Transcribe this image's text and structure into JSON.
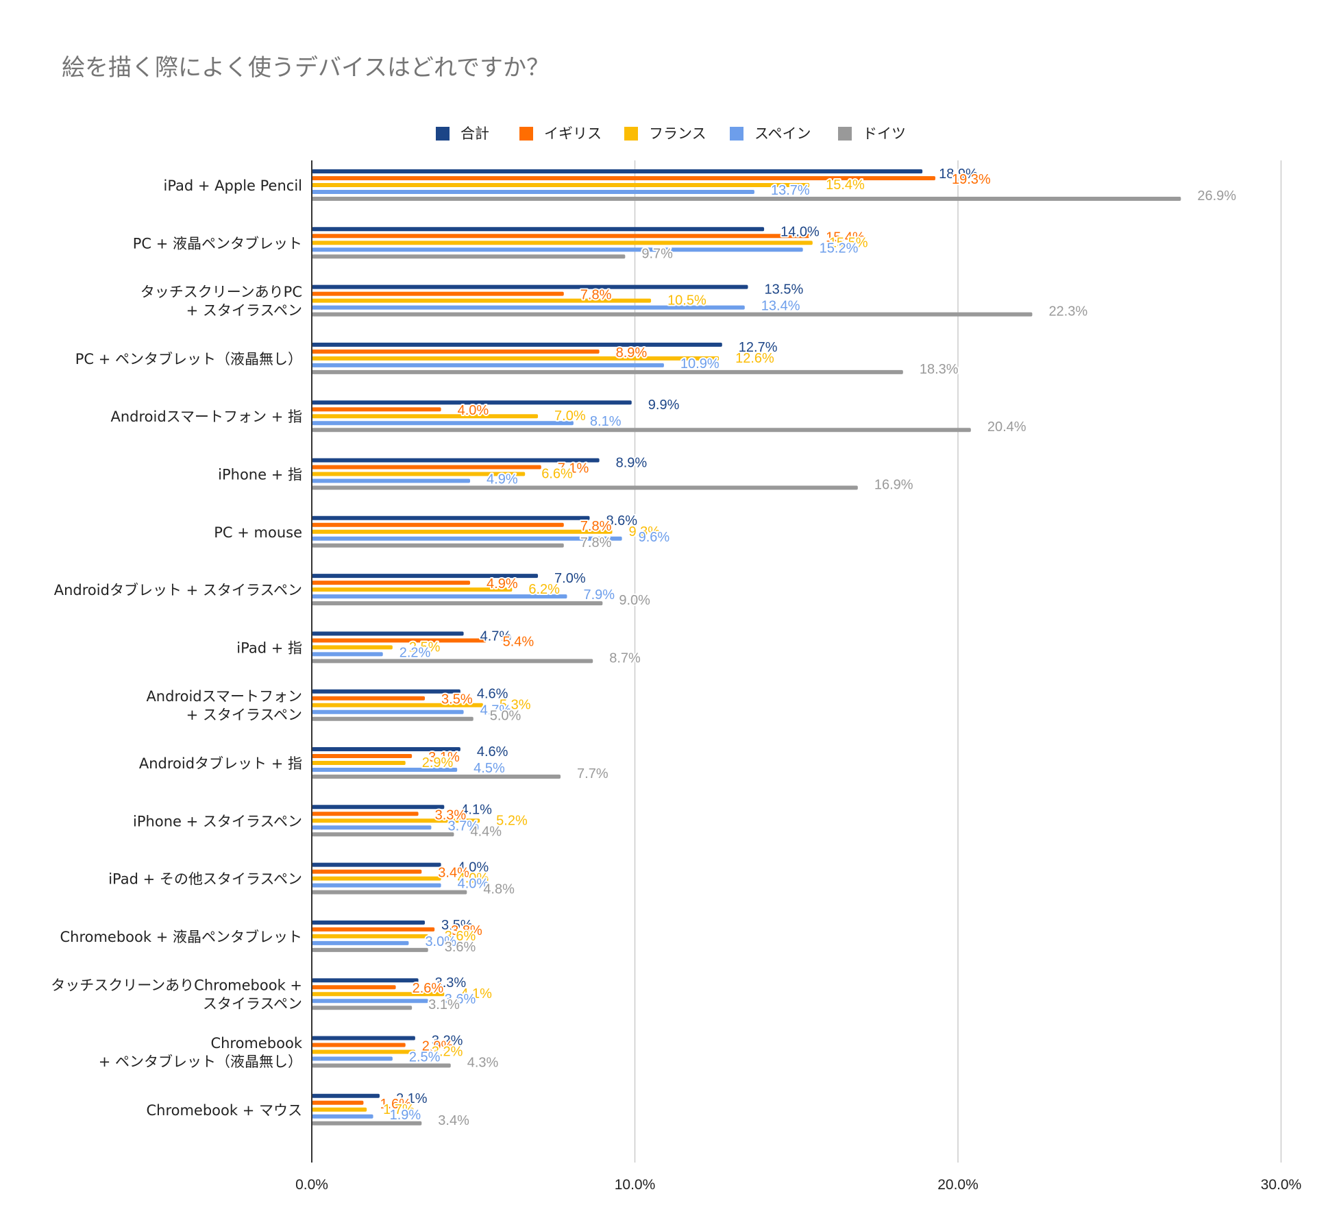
{
  "chart_data": {
    "type": "bar",
    "orientation": "horizontal",
    "title": "絵を描く際によく使うデバイスはどれですか？",
    "xlabel": "",
    "ylabel": "",
    "xlim": [
      0,
      30
    ],
    "ticks": [
      "0.0%",
      "10.0%",
      "20.0%",
      "30.0%"
    ],
    "tick_values": [
      0,
      10,
      20,
      30
    ],
    "grid": true,
    "legend_position": "top",
    "categories": [
      [
        "iPad + Apple Pencil"
      ],
      [
        "PC + 液晶ペンタブレット"
      ],
      [
        "タッチスクリーンありPC",
        "+ スタイラスペン"
      ],
      [
        "PC + ペンタブレット（液晶無し）"
      ],
      [
        "Androidスマートフォン + 指"
      ],
      [
        "iPhone +  指"
      ],
      [
        "PC + mouse"
      ],
      [
        "Androidタブレット + スタイラスペン"
      ],
      [
        "iPad + 指"
      ],
      [
        "Androidスマートフォン",
        "+ スタイラスペン"
      ],
      [
        "Androidタブレット + 指"
      ],
      [
        "iPhone + スタイラスペン"
      ],
      [
        "iPad + その他スタイラスペン"
      ],
      [
        "Chromebook + 液晶ペンタブレット"
      ],
      [
        "タッチスクリーンありChromebook +",
        "スタイラスペン"
      ],
      [
        "Chromebook",
        "+ ペンタブレット（液晶無し）"
      ],
      [
        "Chromebook + マウス"
      ]
    ],
    "series": [
      {
        "name": "合計",
        "color": "#1c4587",
        "values": [
          18.9,
          14.0,
          13.5,
          12.7,
          9.9,
          8.9,
          8.6,
          7.0,
          4.7,
          4.6,
          4.6,
          4.1,
          4.0,
          3.5,
          3.3,
          3.2,
          2.1
        ]
      },
      {
        "name": "イギリス",
        "color": "#ff6d01",
        "values": [
          19.3,
          15.4,
          7.8,
          8.9,
          4.0,
          7.1,
          7.8,
          4.9,
          5.4,
          3.5,
          3.1,
          3.3,
          3.4,
          3.8,
          2.6,
          2.9,
          1.6
        ]
      },
      {
        "name": "フランス",
        "color": "#fbbc04",
        "values": [
          15.4,
          15.5,
          10.5,
          12.6,
          7.0,
          6.6,
          9.3,
          6.2,
          2.5,
          5.3,
          2.9,
          5.2,
          4.0,
          3.6,
          4.1,
          3.2,
          1.7
        ]
      },
      {
        "name": "スペイン",
        "color": "#6d9eeb",
        "values": [
          13.7,
          15.2,
          13.4,
          10.9,
          8.1,
          4.9,
          9.6,
          7.9,
          2.2,
          4.7,
          4.5,
          3.7,
          4.0,
          3.0,
          3.6,
          2.5,
          1.9
        ]
      },
      {
        "name": "ドイツ",
        "color": "#999999",
        "values": [
          26.9,
          9.7,
          22.3,
          18.3,
          20.4,
          16.9,
          7.8,
          9.0,
          8.7,
          5.0,
          7.7,
          4.4,
          4.8,
          3.6,
          3.1,
          4.3,
          3.4
        ]
      }
    ]
  }
}
